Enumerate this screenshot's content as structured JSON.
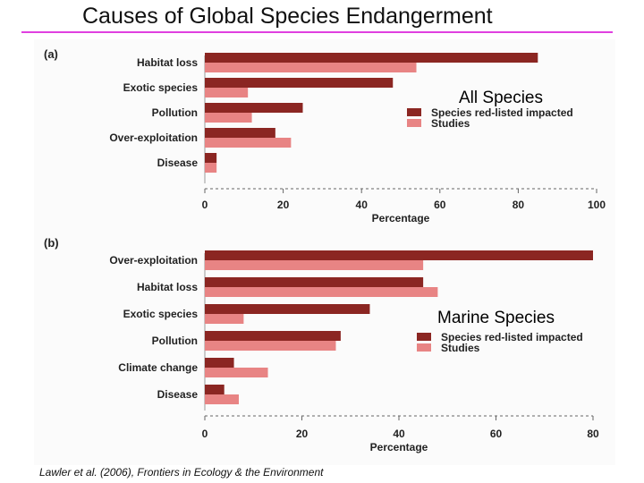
{
  "page": {
    "title": "Causes of Global Species Endangerment",
    "credit": "Lawler et al. (2006), Frontiers in Ecology & the Environment"
  },
  "colors": {
    "red_listed": "#8b2622",
    "studies": "#e88484",
    "title_rule": "#e040e0"
  },
  "chart_data": [
    {
      "type": "bar",
      "orientation": "horizontal",
      "panel": "(a)",
      "overlay_label": "All Species",
      "categories": [
        "Habitat loss",
        "Exotic species",
        "Pollution",
        "Over-exploitation",
        "Disease"
      ],
      "series": [
        {
          "name": "Species red-listed impacted",
          "values": [
            85,
            48,
            25,
            18,
            3
          ]
        },
        {
          "name": "Studies",
          "values": [
            54,
            11,
            12,
            22,
            3
          ]
        }
      ],
      "xlabel": "Percentage",
      "xlim": [
        0,
        100
      ],
      "xticks": [
        0,
        20,
        40,
        60,
        80,
        100
      ],
      "legend": "right"
    },
    {
      "type": "bar",
      "orientation": "horizontal",
      "panel": "(b)",
      "overlay_label": "Marine Species",
      "categories": [
        "Over-exploitation",
        "Habitat loss",
        "Exotic species",
        "Pollution",
        "Climate change",
        "Disease"
      ],
      "series": [
        {
          "name": "Species red-listed impacted",
          "values": [
            80,
            45,
            34,
            28,
            6,
            4
          ]
        },
        {
          "name": "Studies",
          "values": [
            45,
            48,
            8,
            27,
            13,
            7
          ]
        }
      ],
      "xlabel": "Percentage",
      "xlim": [
        0,
        80
      ],
      "xticks": [
        0,
        20,
        40,
        60,
        80
      ],
      "legend": "right"
    }
  ]
}
